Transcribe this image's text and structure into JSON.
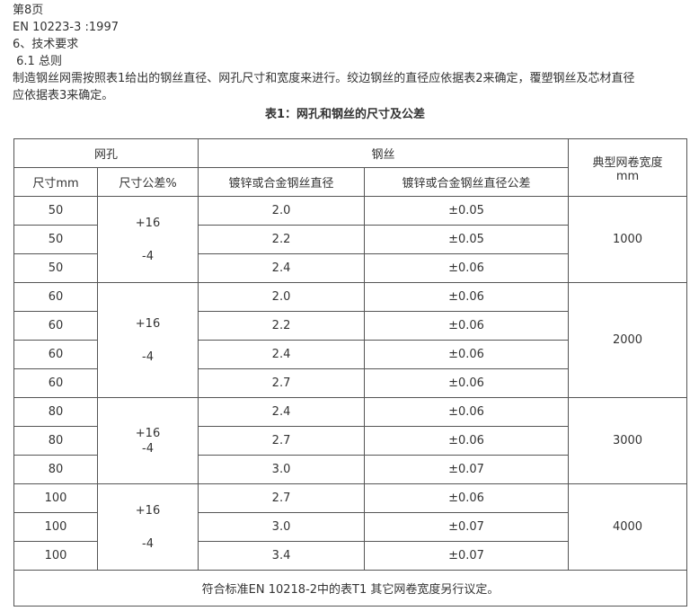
{
  "doc": {
    "page_label": "第8页",
    "standard": "EN 10223-3 :1997",
    "section": "6、技术要求",
    "subsection": " 6.1 总则",
    "paragraph_line1": "制造钢丝网需按照表1给出的钢丝直径、网孔尺寸和宽度来进行。绞边钢丝的直径应依据表2来确定，覆塑钢丝及芯材直径",
    "paragraph_line2": "应依据表3来确定。",
    "table_title": "表1：网孔和钢丝的尺寸及公差"
  },
  "table": {
    "group_headers": {
      "mesh": "网孔",
      "wire": "钢丝",
      "width": "典型网卷宽度 mm"
    },
    "columns": [
      "尺寸mm",
      "尺寸公差%",
      "镀锌或合金钢丝直径",
      "镀锌或合金钢丝直径公差"
    ],
    "groups": [
      {
        "tolerance": [
          "+16",
          "-4"
        ],
        "width": "1000",
        "rows": [
          [
            "50",
            "2.0",
            "±0.05"
          ],
          [
            "50",
            "2.2",
            "±0.05"
          ],
          [
            "50",
            "2.4",
            "±0.06"
          ]
        ]
      },
      {
        "tolerance": [
          "+16",
          "-4"
        ],
        "width": "2000",
        "rows": [
          [
            "60",
            "2.0",
            "±0.06"
          ],
          [
            "60",
            "2.2",
            "±0.06"
          ],
          [
            "60",
            "2.4",
            "±0.06"
          ],
          [
            "60",
            "2.7",
            "±0.06"
          ]
        ]
      },
      {
        "tolerance": [
          "+16",
          "-4"
        ],
        "width": "3000",
        "rows": [
          [
            "80",
            "2.4",
            "±0.06"
          ],
          [
            "80",
            "2.7",
            "±0.06"
          ],
          [
            "80",
            "3.0",
            "±0.07"
          ]
        ]
      },
      {
        "tolerance": [
          "+16",
          "-4"
        ],
        "width": "4000",
        "rows": [
          [
            "100",
            "2.7",
            "±0.06"
          ],
          [
            "100",
            "3.0",
            "±0.07"
          ],
          [
            "100",
            "3.4",
            "±0.07"
          ]
        ]
      }
    ],
    "footer": "符合标准EN 10218-2中的表T1 其它网卷宽度另行议定。"
  }
}
